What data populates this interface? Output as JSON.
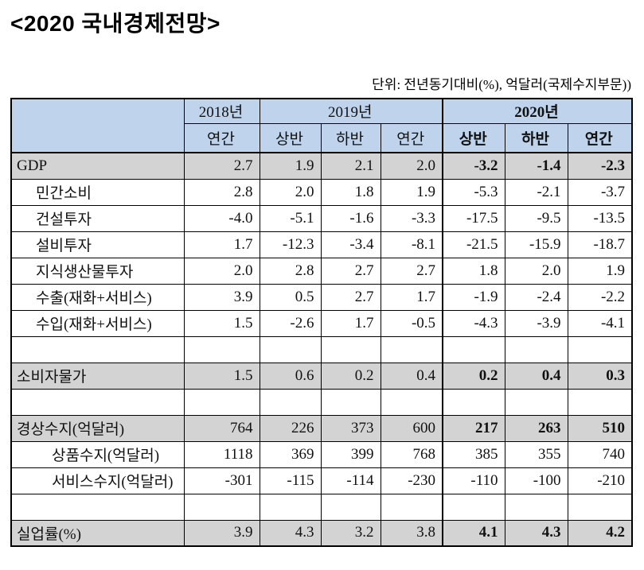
{
  "title": "<2020  국내경제전망>",
  "unit_note": "단위:  전년동기대비(%),  억달러(국제수지부문))",
  "colors": {
    "header_bg": "#bfd4ec",
    "highlight_bg": "#d3d3d3",
    "border": "#000000"
  },
  "table": {
    "header": {
      "corner": "",
      "y2018": "2018년",
      "y2019": "2019년",
      "y2020": "2020년",
      "sub": [
        "연간",
        "상반",
        "하반",
        "연간",
        "상반",
        "하반",
        "연간"
      ]
    },
    "rows": [
      {
        "label": "GDP",
        "indent": 0,
        "highlight": true,
        "values": [
          "2.7",
          "1.9",
          "2.1",
          "2.0",
          "-3.2",
          "-1.4",
          "-2.3"
        ]
      },
      {
        "label": "민간소비",
        "indent": 1,
        "highlight": false,
        "values": [
          "2.8",
          "2.0",
          "1.8",
          "1.9",
          "-5.3",
          "-2.1",
          "-3.7"
        ]
      },
      {
        "label": "건설투자",
        "indent": 1,
        "highlight": false,
        "values": [
          "-4.0",
          "-5.1",
          "-1.6",
          "-3.3",
          "-17.5",
          "-9.5",
          "-13.5"
        ]
      },
      {
        "label": "설비투자",
        "indent": 1,
        "highlight": false,
        "values": [
          "1.7",
          "-12.3",
          "-3.4",
          "-8.1",
          "-21.5",
          "-15.9",
          "-18.7"
        ]
      },
      {
        "label": "지식생산물투자",
        "indent": 1,
        "highlight": false,
        "values": [
          "2.0",
          "2.8",
          "2.7",
          "2.7",
          "1.8",
          "2.0",
          "1.9"
        ]
      },
      {
        "label": "수출(재화+서비스)",
        "indent": 1,
        "highlight": false,
        "values": [
          "3.9",
          "0.5",
          "2.7",
          "1.7",
          "-1.9",
          "-2.4",
          "-2.2"
        ]
      },
      {
        "label": "수입(재화+서비스)",
        "indent": 1,
        "highlight": false,
        "values": [
          "1.5",
          "-2.6",
          "1.7",
          "-0.5",
          "-4.3",
          "-3.9",
          "-4.1"
        ]
      },
      {
        "label": "",
        "indent": 0,
        "highlight": false,
        "blank": true,
        "values": [
          "",
          "",
          "",
          "",
          "",
          "",
          ""
        ]
      },
      {
        "label": "소비자물가",
        "indent": 0,
        "highlight": true,
        "values": [
          "1.5",
          "0.6",
          "0.2",
          "0.4",
          "0.2",
          "0.4",
          "0.3"
        ]
      },
      {
        "label": "",
        "indent": 0,
        "highlight": false,
        "blank": true,
        "values": [
          "",
          "",
          "",
          "",
          "",
          "",
          ""
        ]
      },
      {
        "label": "경상수지(억달러)",
        "indent": 0,
        "highlight": true,
        "values": [
          "764",
          "226",
          "373",
          "600",
          "217",
          "263",
          "510"
        ]
      },
      {
        "label": "상품수지(억달러)",
        "indent": 2,
        "highlight": false,
        "values": [
          "1118",
          "369",
          "399",
          "768",
          "385",
          "355",
          "740"
        ]
      },
      {
        "label": "서비스수지(억달러)",
        "indent": 2,
        "highlight": false,
        "values": [
          "-301",
          "-115",
          "-114",
          "-230",
          "-110",
          "-100",
          "-210"
        ]
      },
      {
        "label": "",
        "indent": 0,
        "highlight": false,
        "blank": true,
        "values": [
          "",
          "",
          "",
          "",
          "",
          "",
          ""
        ]
      },
      {
        "label": "실업률(%)",
        "indent": 0,
        "highlight": true,
        "values": [
          "3.9",
          "4.3",
          "3.2",
          "3.8",
          "4.1",
          "4.3",
          "4.2"
        ]
      }
    ]
  }
}
